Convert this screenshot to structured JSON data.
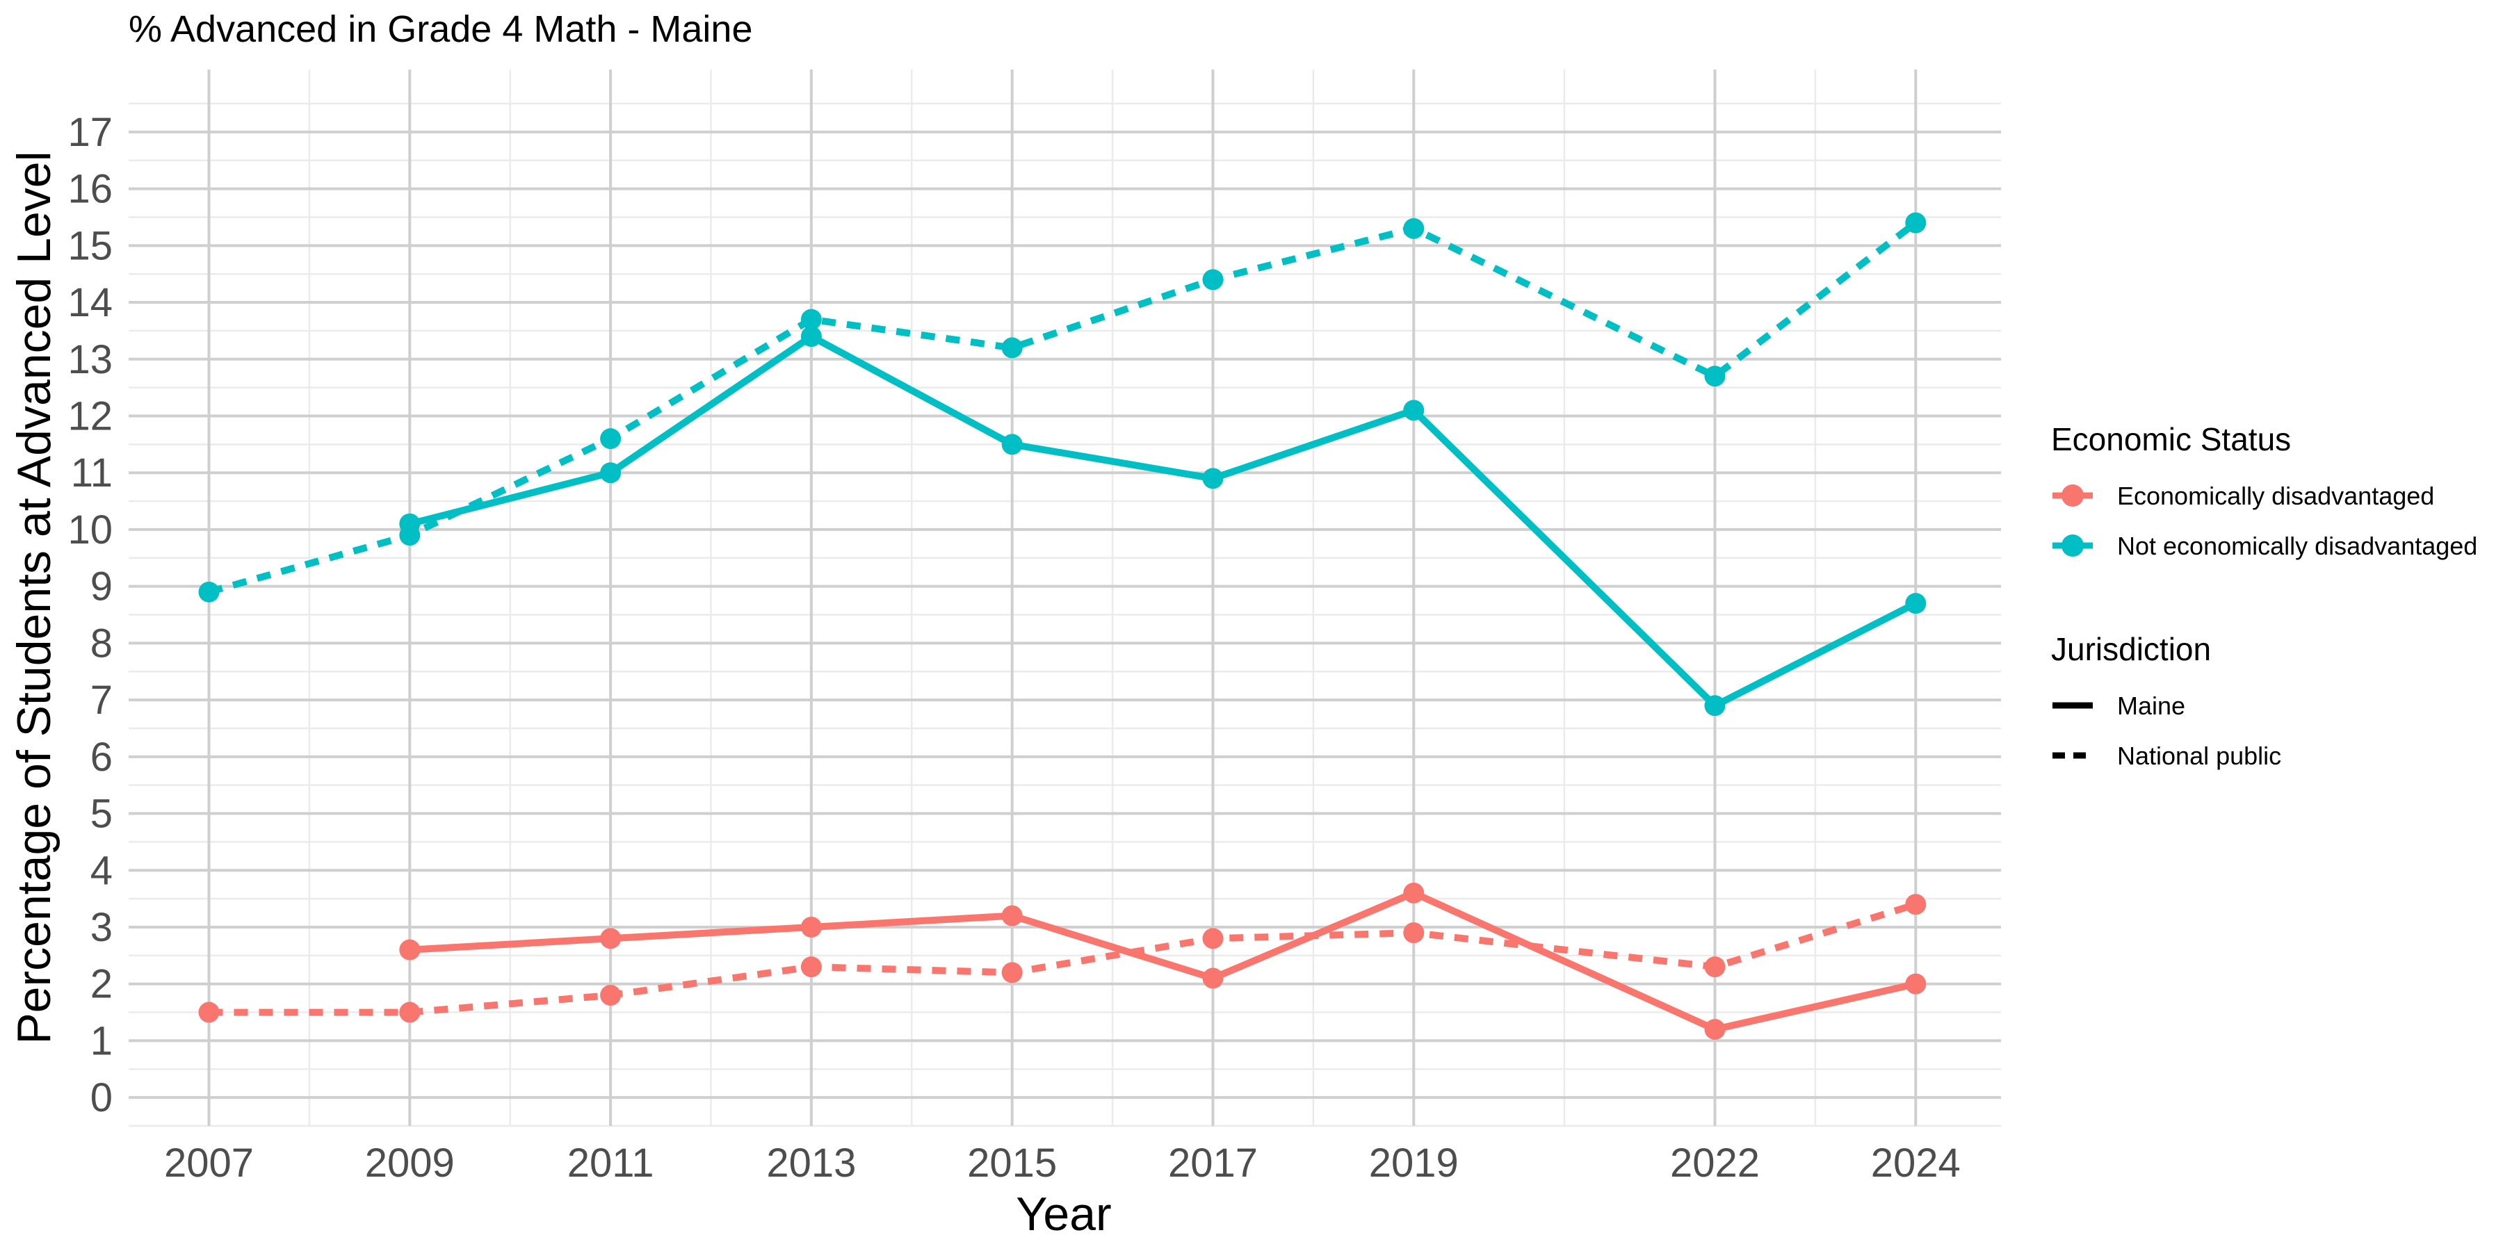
{
  "chart_data": {
    "type": "line",
    "title": "% Advanced in Grade 4 Math - Maine",
    "xlabel": "Year",
    "ylabel": "Percentage of Students at Advanced Level",
    "x_ticks": [
      2007,
      2009,
      2011,
      2013,
      2015,
      2017,
      2019,
      2022,
      2024
    ],
    "y_ticks": [
      0,
      1,
      2,
      3,
      4,
      5,
      6,
      7,
      8,
      9,
      10,
      11,
      12,
      13,
      14,
      15,
      16,
      17
    ],
    "xlim": [
      2006.2,
      2024.85
    ],
    "ylim": [
      -0.5,
      18.1
    ],
    "grid": true,
    "legend_placement": "right",
    "colors": {
      "economically_disadvantaged": "#F8766D",
      "not_economically_disadvantaged": "#00BFC4"
    },
    "legend": {
      "color_title": "Economic Status",
      "color_items": [
        {
          "label": "Economically disadvantaged",
          "color": "#F8766D"
        },
        {
          "label": "Not economically disadvantaged",
          "color": "#00BFC4"
        }
      ],
      "linetype_title": "Jurisdiction",
      "linetype_items": [
        {
          "label": "Maine",
          "linetype": "solid"
        },
        {
          "label": "National public",
          "linetype": "dashed"
        }
      ]
    },
    "series": [
      {
        "status": "Economically disadvantaged",
        "jurisdiction": "Maine",
        "color": "#F8766D",
        "linetype": "solid",
        "x": [
          2009,
          2011,
          2013,
          2015,
          2017,
          2019,
          2022,
          2024
        ],
        "y": [
          2.6,
          2.8,
          3.0,
          3.2,
          2.1,
          3.6,
          1.2,
          2.0
        ]
      },
      {
        "status": "Economically disadvantaged",
        "jurisdiction": "National public",
        "color": "#F8766D",
        "linetype": "dashed",
        "x": [
          2007,
          2009,
          2011,
          2013,
          2015,
          2017,
          2019,
          2022,
          2024
        ],
        "y": [
          1.5,
          1.5,
          1.8,
          2.3,
          2.2,
          2.8,
          2.9,
          2.3,
          3.4
        ]
      },
      {
        "status": "Not economically disadvantaged",
        "jurisdiction": "Maine",
        "color": "#00BFC4",
        "linetype": "solid",
        "x": [
          2009,
          2011,
          2013,
          2015,
          2017,
          2019,
          2022,
          2024
        ],
        "y": [
          10.1,
          11.0,
          13.4,
          11.5,
          10.9,
          12.1,
          6.9,
          8.7
        ]
      },
      {
        "status": "Not economically disadvantaged",
        "jurisdiction": "National public",
        "color": "#00BFC4",
        "linetype": "dashed",
        "x": [
          2007,
          2009,
          2011,
          2013,
          2015,
          2017,
          2019,
          2022,
          2024
        ],
        "y": [
          8.9,
          9.9,
          11.6,
          13.7,
          13.2,
          14.4,
          15.3,
          12.7,
          15.4
        ]
      }
    ]
  }
}
